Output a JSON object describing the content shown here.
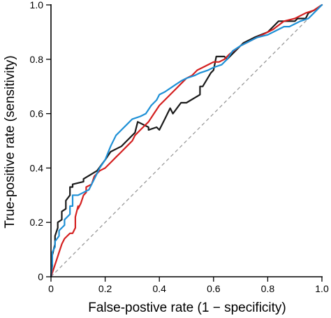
{
  "chart_data": {
    "type": "line",
    "title": "",
    "xlabel": "False-postive rate (1 − specificity)",
    "ylabel": "True-positive rate (sensitivity)",
    "xlim": [
      0,
      1
    ],
    "ylim": [
      0,
      1
    ],
    "xticks": [
      0,
      0.2,
      0.4,
      0.6,
      0.8,
      1.0
    ],
    "yticks": [
      0,
      0.2,
      0.4,
      0.6,
      0.8,
      1.0
    ],
    "xtick_labels": [
      "0",
      "0.2",
      "0.4",
      "0.6",
      "0.8",
      "1.0"
    ],
    "ytick_labels": [
      "0",
      "0.2",
      "0.4",
      "0.6",
      "0.8",
      "1.0"
    ],
    "grid": false,
    "legend": "none",
    "reference_line": {
      "x": [
        0,
        1
      ],
      "y": [
        0,
        1
      ],
      "color": "#9a9a9a",
      "style": "dashed"
    },
    "series": [
      {
        "color": "#1a1a1a",
        "x": [
          0,
          0.005,
          0.005,
          0.015,
          0.015,
          0.025,
          0.025,
          0.04,
          0.04,
          0.055,
          0.055,
          0.07,
          0.07,
          0.08,
          0.08,
          0.12,
          0.12,
          0.17,
          0.2,
          0.22,
          0.26,
          0.28,
          0.31,
          0.32,
          0.36,
          0.36,
          0.39,
          0.4,
          0.42,
          0.43,
          0.44,
          0.45,
          0.48,
          0.5,
          0.55,
          0.55,
          0.56,
          0.59,
          0.6,
          0.61,
          0.64,
          0.65,
          0.7,
          0.71,
          0.75,
          0.8,
          0.82,
          0.84,
          0.9,
          0.91,
          0.94,
          0.95,
          0.97,
          1.0
        ],
        "y": [
          0,
          0.04,
          0.08,
          0.12,
          0.15,
          0.18,
          0.2,
          0.21,
          0.24,
          0.25,
          0.28,
          0.3,
          0.33,
          0.33,
          0.34,
          0.35,
          0.36,
          0.39,
          0.43,
          0.46,
          0.48,
          0.5,
          0.53,
          0.57,
          0.55,
          0.54,
          0.55,
          0.54,
          0.58,
          0.6,
          0.62,
          0.6,
          0.64,
          0.64,
          0.67,
          0.7,
          0.7,
          0.75,
          0.76,
          0.81,
          0.81,
          0.8,
          0.85,
          0.86,
          0.88,
          0.9,
          0.92,
          0.94,
          0.94,
          0.95,
          0.95,
          0.97,
          0.98,
          1.0
        ]
      },
      {
        "color": "#d42020",
        "x": [
          0,
          0.01,
          0.02,
          0.03,
          0.04,
          0.05,
          0.06,
          0.07,
          0.08,
          0.09,
          0.09,
          0.1,
          0.1,
          0.11,
          0.12,
          0.13,
          0.13,
          0.15,
          0.16,
          0.18,
          0.2,
          0.22,
          0.24,
          0.26,
          0.28,
          0.3,
          0.31,
          0.33,
          0.34,
          0.36,
          0.38,
          0.4,
          0.42,
          0.44,
          0.46,
          0.48,
          0.5,
          0.52,
          0.54,
          0.56,
          0.58,
          0.6,
          0.62,
          0.64,
          0.66,
          0.7,
          0.72,
          0.74,
          0.78,
          0.82,
          0.86,
          0.9,
          0.94,
          0.97,
          1.0
        ],
        "y": [
          0,
          0.03,
          0.06,
          0.09,
          0.12,
          0.14,
          0.15,
          0.16,
          0.16,
          0.18,
          0.22,
          0.26,
          0.25,
          0.27,
          0.3,
          0.31,
          0.33,
          0.34,
          0.37,
          0.39,
          0.4,
          0.42,
          0.44,
          0.46,
          0.48,
          0.5,
          0.52,
          0.54,
          0.55,
          0.57,
          0.6,
          0.63,
          0.65,
          0.67,
          0.69,
          0.71,
          0.73,
          0.74,
          0.76,
          0.77,
          0.78,
          0.79,
          0.79,
          0.8,
          0.82,
          0.85,
          0.86,
          0.87,
          0.89,
          0.91,
          0.94,
          0.95,
          0.97,
          0.98,
          1.0
        ]
      },
      {
        "color": "#1e90d6",
        "x": [
          0,
          0.005,
          0.005,
          0.015,
          0.015,
          0.03,
          0.03,
          0.05,
          0.05,
          0.07,
          0.07,
          0.08,
          0.08,
          0.1,
          0.14,
          0.16,
          0.18,
          0.2,
          0.22,
          0.24,
          0.26,
          0.28,
          0.3,
          0.33,
          0.35,
          0.37,
          0.39,
          0.4,
          0.42,
          0.45,
          0.48,
          0.5,
          0.53,
          0.55,
          0.58,
          0.6,
          0.63,
          0.65,
          0.67,
          0.7,
          0.74,
          0.76,
          0.8,
          0.82,
          0.86,
          0.88,
          0.92,
          0.95,
          0.97,
          1.0
        ],
        "y": [
          0,
          0.05,
          0.09,
          0.11,
          0.13,
          0.15,
          0.17,
          0.19,
          0.21,
          0.23,
          0.26,
          0.26,
          0.3,
          0.3,
          0.32,
          0.36,
          0.4,
          0.43,
          0.48,
          0.52,
          0.54,
          0.56,
          0.58,
          0.59,
          0.6,
          0.63,
          0.65,
          0.67,
          0.68,
          0.7,
          0.72,
          0.73,
          0.74,
          0.75,
          0.76,
          0.77,
          0.78,
          0.8,
          0.83,
          0.85,
          0.87,
          0.88,
          0.89,
          0.9,
          0.92,
          0.92,
          0.94,
          0.95,
          0.97,
          1.0
        ]
      }
    ]
  }
}
